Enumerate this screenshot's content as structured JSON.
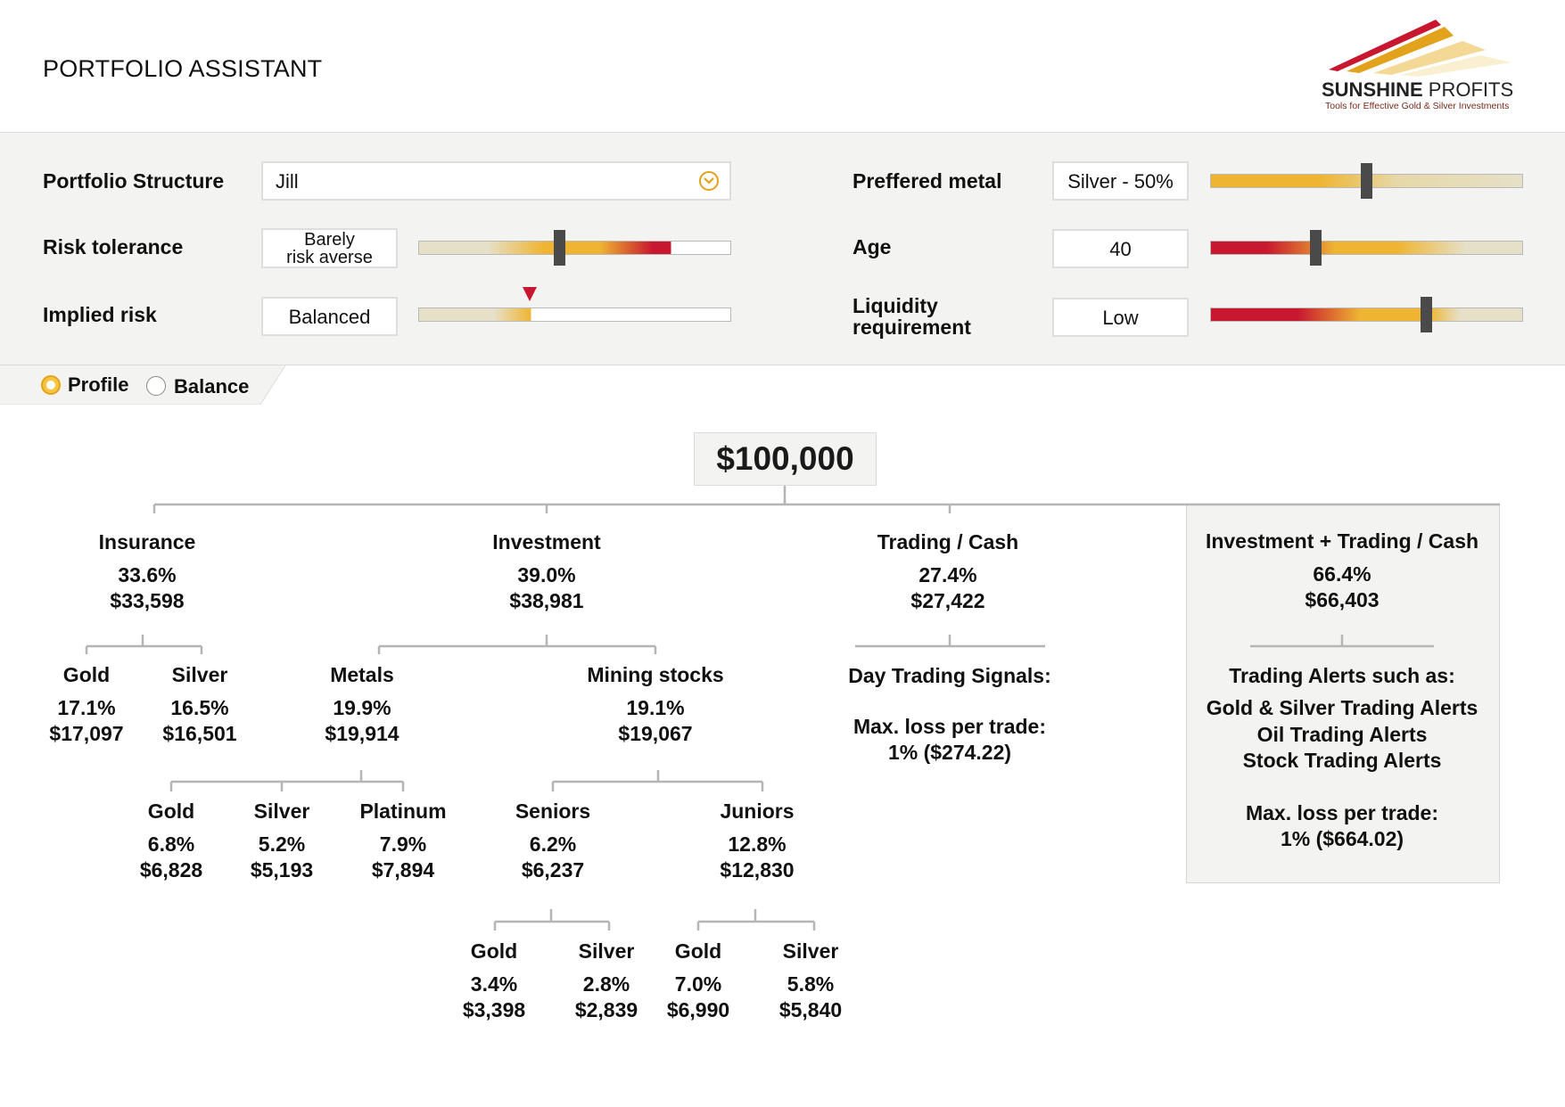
{
  "app": {
    "title": "PORTFOLIO ASSISTANT"
  },
  "brand": {
    "name_bold": "SUNSHINE",
    "name_light": " PROFITS",
    "tagline": "Tools for Effective Gold & Silver Investments"
  },
  "colors": {
    "accent": "#e3a21b",
    "gold": "#efb532",
    "red": "#c8182f",
    "track": "#e6e0c8",
    "panel_bg": "#f3f3f1"
  },
  "controls": {
    "portfolio_structure": {
      "label": "Portfolio Structure",
      "value": "Jill",
      "icon": "chevron-down-icon"
    },
    "risk_tolerance": {
      "label": "Risk tolerance",
      "value_line1": "Barely",
      "value_line2": "risk averse",
      "slider_level": 0.45
    },
    "implied_risk": {
      "label": "Implied risk",
      "value": "Balanced",
      "level": 0.36
    },
    "preferred_metal": {
      "label": "Preffered metal",
      "value": "Silver - 50%",
      "slider_level": 0.5
    },
    "age": {
      "label": "Age",
      "value": "40",
      "slider_level": 0.34
    },
    "liquidity": {
      "label_line1": "Liquidity",
      "label_line2": "requirement",
      "value": "Low",
      "slider_level": 0.69
    }
  },
  "tabs": {
    "profile": "Profile",
    "balance": "Balance",
    "selected": "profile"
  },
  "tree": {
    "total": "$100,000",
    "insurance": {
      "name": "Insurance",
      "pct": "33.6%",
      "amt": "$33,598",
      "gold": {
        "name": "Gold",
        "pct": "17.1%",
        "amt": "$17,097"
      },
      "silver": {
        "name": "Silver",
        "pct": "16.5%",
        "amt": "$16,501"
      }
    },
    "investment": {
      "name": "Investment",
      "pct": "39.0%",
      "amt": "$38,981",
      "metals": {
        "name": "Metals",
        "pct": "19.9%",
        "amt": "$19,914",
        "gold": {
          "name": "Gold",
          "pct": "6.8%",
          "amt": "$6,828"
        },
        "silver": {
          "name": "Silver",
          "pct": "5.2%",
          "amt": "$5,193"
        },
        "platinum": {
          "name": "Platinum",
          "pct": "7.9%",
          "amt": "$7,894"
        }
      },
      "mining": {
        "name": "Mining stocks",
        "pct": "19.1%",
        "amt": "$19,067",
        "seniors": {
          "name": "Seniors",
          "pct": "6.2%",
          "amt": "$6,237",
          "gold": {
            "name": "Gold",
            "pct": "3.4%",
            "amt": "$3,398"
          },
          "silver": {
            "name": "Silver",
            "pct": "2.8%",
            "amt": "$2,839"
          }
        },
        "juniors": {
          "name": "Juniors",
          "pct": "12.8%",
          "amt": "$12,830",
          "gold": {
            "name": "Gold",
            "pct": "7.0%",
            "amt": "$6,990"
          },
          "silver": {
            "name": "Silver",
            "pct": "5.8%",
            "amt": "$5,840"
          }
        }
      }
    },
    "trading": {
      "name": "Trading / Cash",
      "pct": "27.4%",
      "amt": "$27,422",
      "signals": "Day Trading Signals:",
      "max_loss_label": "Max. loss per trade:",
      "max_loss_value": "1% ($274.22)"
    },
    "combined": {
      "name": "Investment + Trading / Cash",
      "pct": "66.4%",
      "amt": "$66,403",
      "alerts_title": "Trading Alerts such as:",
      "alerts": [
        "Gold & Silver Trading Alerts",
        "Oil Trading Alerts",
        "Stock Trading Alerts"
      ],
      "max_loss_label": "Max. loss per trade:",
      "max_loss_value": "1% ($664.02)"
    }
  }
}
